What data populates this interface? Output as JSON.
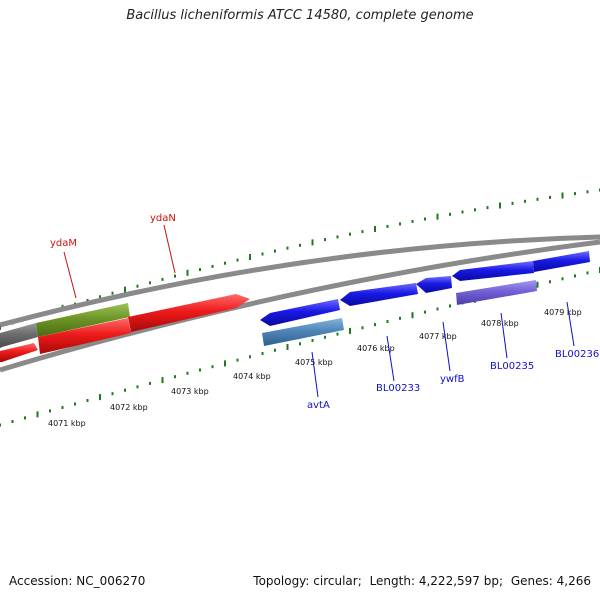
{
  "title": "Bacillus licheniformis ATCC 14580, complete genome",
  "footer": {
    "accession_label": "Accession:",
    "accession": "NC_006270",
    "topology_label": "Topology:",
    "topology": "circular;",
    "length_label": "Length:",
    "length": "4,222,597 bp;",
    "genes_label": "Genes:",
    "genes": "4,266"
  },
  "colors": {
    "tick": "#1c7c1c",
    "backbone": "#8a8a8a",
    "label_red": "#cc1010",
    "label_blue": "#1010cc",
    "forward": "#e8191a",
    "reverse": "#1a1ae6",
    "olive": "#6e9626",
    "grey_feature": "#6d6d6d",
    "steel": "#4f86b8",
    "lavender": "#7361d6"
  },
  "scale_labels": [
    "4071 kbp",
    "4072 kbp",
    "4073 kbp",
    "4074 kbp",
    "4075 kbp",
    "4076 kbp",
    "4077 kbp",
    "4078 kbp",
    "4079 kbp"
  ],
  "gene_labels": [
    {
      "name": "ydaM",
      "strand": "forward"
    },
    {
      "name": "ydaN",
      "strand": "forward"
    },
    {
      "name": "avtA",
      "strand": "reverse"
    },
    {
      "name": "BL00233",
      "strand": "reverse"
    },
    {
      "name": "ywfB",
      "strand": "reverse"
    },
    {
      "name": "BL00235",
      "strand": "reverse"
    },
    {
      "name": "BL00236",
      "strand": "reverse"
    }
  ]
}
